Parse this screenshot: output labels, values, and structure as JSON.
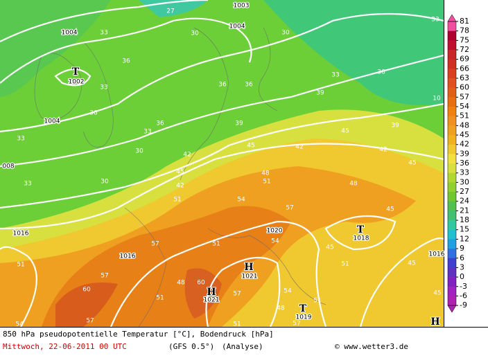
{
  "map": {
    "isobar_labels": [
      "1004",
      "1004",
      "1003",
      "1002",
      "1004",
      "008",
      "1016",
      "1016",
      "1020",
      "1018",
      "1021",
      "1021",
      "1019",
      "1016"
    ],
    "pressure_centers": [
      "T",
      "T",
      "H",
      "H",
      "T",
      "H"
    ],
    "theta_labels": [
      27,
      30,
      33,
      36,
      33,
      36,
      33,
      33,
      36,
      30,
      33,
      30,
      42,
      45,
      42,
      51,
      45,
      48,
      51,
      42,
      45,
      42,
      39,
      36,
      33,
      39,
      36,
      36,
      39,
      30,
      33,
      10,
      45,
      48,
      45,
      54,
      57,
      51,
      54,
      45,
      51,
      45,
      57,
      57,
      51,
      60,
      57,
      48,
      51,
      54,
      48,
      51,
      54,
      57,
      51,
      57,
      60,
      45
    ]
  },
  "colorbar": {
    "ticks": [
      81,
      78,
      75,
      72,
      69,
      66,
      63,
      60,
      57,
      54,
      51,
      48,
      45,
      42,
      39,
      36,
      33,
      30,
      27,
      24,
      21,
      18,
      15,
      12,
      9,
      6,
      3,
      0,
      -3,
      -6,
      -9
    ],
    "colors": [
      "#f0509f",
      "#b00030",
      "#c01030",
      "#c82828",
      "#d03020",
      "#d84020",
      "#e05020",
      "#e06018",
      "#e87010",
      "#f08010",
      "#f09020",
      "#f0a020",
      "#f0b020",
      "#f0c830",
      "#f0e040",
      "#d8e040",
      "#b0d830",
      "#90d030",
      "#70c830",
      "#50c050",
      "#40c070",
      "#30c8a0",
      "#20c0d0",
      "#20a0e0",
      "#3070e0",
      "#4040d0",
      "#6030c0",
      "#8020c0",
      "#a020c0",
      "#b020b0"
    ]
  },
  "footer": {
    "title": "850 hPa pseudopotentielle Temperatur [°C], Bodendruck [hPa]",
    "date": "Mittwoch, 22-06-2011  00 UTC",
    "model": "(GFS 0.5°)",
    "analysis": "(Analyse)",
    "credit": "© www.wetter3.de"
  }
}
